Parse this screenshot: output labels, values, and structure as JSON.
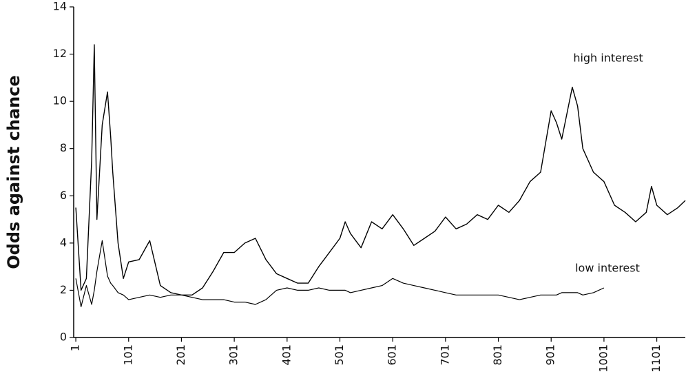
{
  "chart_data": {
    "type": "line",
    "y_label": "Odds against chance",
    "annotations": [
      "high interest",
      "low interest"
    ],
    "x": [
      1,
      11,
      21,
      31,
      36,
      41,
      51,
      61,
      67,
      71,
      81,
      91,
      101,
      121,
      141,
      161,
      181,
      201,
      221,
      241,
      261,
      281,
      301,
      321,
      341,
      361,
      381,
      401,
      421,
      441,
      461,
      481,
      501,
      511,
      521,
      541,
      561,
      581,
      601,
      621,
      641,
      661,
      681,
      701,
      721,
      741,
      761,
      781,
      801,
      821,
      841,
      861,
      881,
      901,
      911,
      921,
      941,
      951,
      961,
      981,
      1001,
      1021,
      1041,
      1061,
      1081,
      1091,
      1101,
      1121,
      1141,
      1155
    ],
    "series": [
      {
        "name": "high interest",
        "color": "#000000",
        "values": [
          5.5,
          2.0,
          2.5,
          7.5,
          12.4,
          5.0,
          9.0,
          10.4,
          8.5,
          7.0,
          4.0,
          2.5,
          3.2,
          3.3,
          4.1,
          2.2,
          1.9,
          1.8,
          1.8,
          2.1,
          2.8,
          3.6,
          3.6,
          4.0,
          4.2,
          3.3,
          2.7,
          2.5,
          2.3,
          2.3,
          3.0,
          3.6,
          4.2,
          4.9,
          4.4,
          3.8,
          4.9,
          4.6,
          5.2,
          4.6,
          3.9,
          4.2,
          4.5,
          5.1,
          4.6,
          4.8,
          5.2,
          5.0,
          5.6,
          5.3,
          5.8,
          6.6,
          7.0,
          9.6,
          9.1,
          8.4,
          10.6,
          9.8,
          8.0,
          7.0,
          6.6,
          5.6,
          5.3,
          4.9,
          5.3,
          6.4,
          5.6,
          5.2,
          5.5,
          5.8
        ]
      },
      {
        "name": "low interest",
        "color": "#000000",
        "values": [
          2.5,
          1.3,
          2.2,
          1.4,
          2.0,
          2.8,
          4.1,
          2.6,
          2.3,
          2.2,
          1.9,
          1.8,
          1.6,
          1.7,
          1.8,
          1.7,
          1.8,
          1.8,
          1.7,
          1.6,
          1.6,
          1.6,
          1.5,
          1.5,
          1.4,
          1.6,
          2.0,
          2.1,
          2.0,
          2.0,
          2.1,
          2.0,
          2.0,
          2.0,
          1.9,
          2.0,
          2.1,
          2.2,
          2.5,
          2.3,
          2.2,
          2.1,
          2.0,
          1.9,
          1.8,
          1.8,
          1.8,
          1.8,
          1.8,
          1.7,
          1.6,
          1.7,
          1.8,
          1.8,
          1.8,
          1.9,
          1.9,
          1.9,
          1.8,
          1.9,
          2.1,
          null,
          null,
          null,
          null,
          null,
          null,
          null,
          null,
          null
        ]
      }
    ],
    "xlim": [
      -3,
      1155
    ],
    "xticks": [
      1,
      101,
      201,
      301,
      401,
      501,
      601,
      701,
      801,
      901,
      1001,
      1101
    ],
    "ylim": [
      0,
      14
    ],
    "yticks": [
      0,
      2,
      4,
      6,
      8,
      10,
      12,
      14
    ]
  }
}
